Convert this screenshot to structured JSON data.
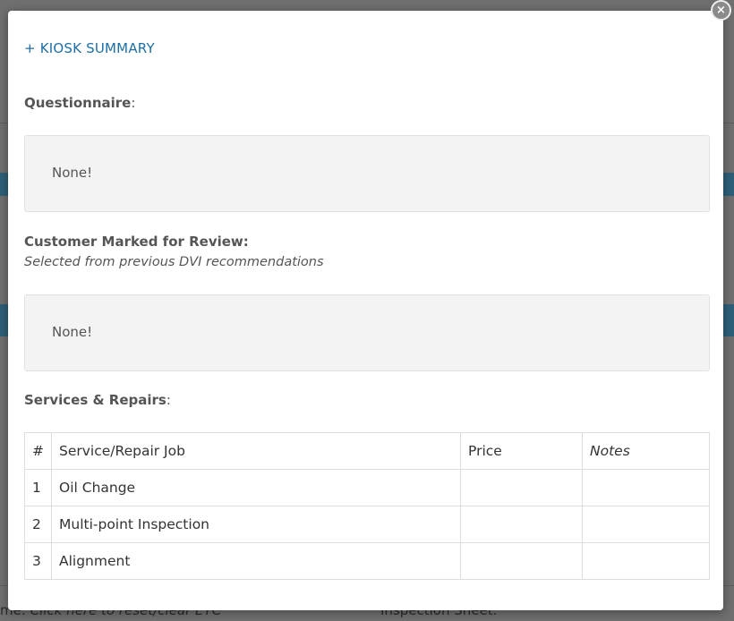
{
  "background": {
    "bottom_left": "me: ",
    "bottom_left_link": "Click here to reset/clear ETC",
    "bottom_right": "Inspection Sheet:"
  },
  "modal": {
    "close_icon": "close-icon",
    "title": "+ KIOSK SUMMARY",
    "questionnaire": {
      "label": "Questionnaire",
      "colon": ":",
      "value": "None!"
    },
    "review": {
      "label": "Customer Marked for Review:",
      "subtitle": "Selected from previous DVI recommendations",
      "value": "None!"
    },
    "services": {
      "label": "Services & Repairs",
      "colon": ":",
      "columns": [
        "#",
        "Service/Repair Job",
        "Price",
        "Notes"
      ],
      "rows": [
        {
          "num": "1",
          "job": "Oil Change",
          "price": "",
          "notes": ""
        },
        {
          "num": "2",
          "job": "Multi-point Inspection",
          "price": "",
          "notes": ""
        },
        {
          "num": "3",
          "job": "Alignment",
          "price": "",
          "notes": ""
        }
      ]
    }
  }
}
